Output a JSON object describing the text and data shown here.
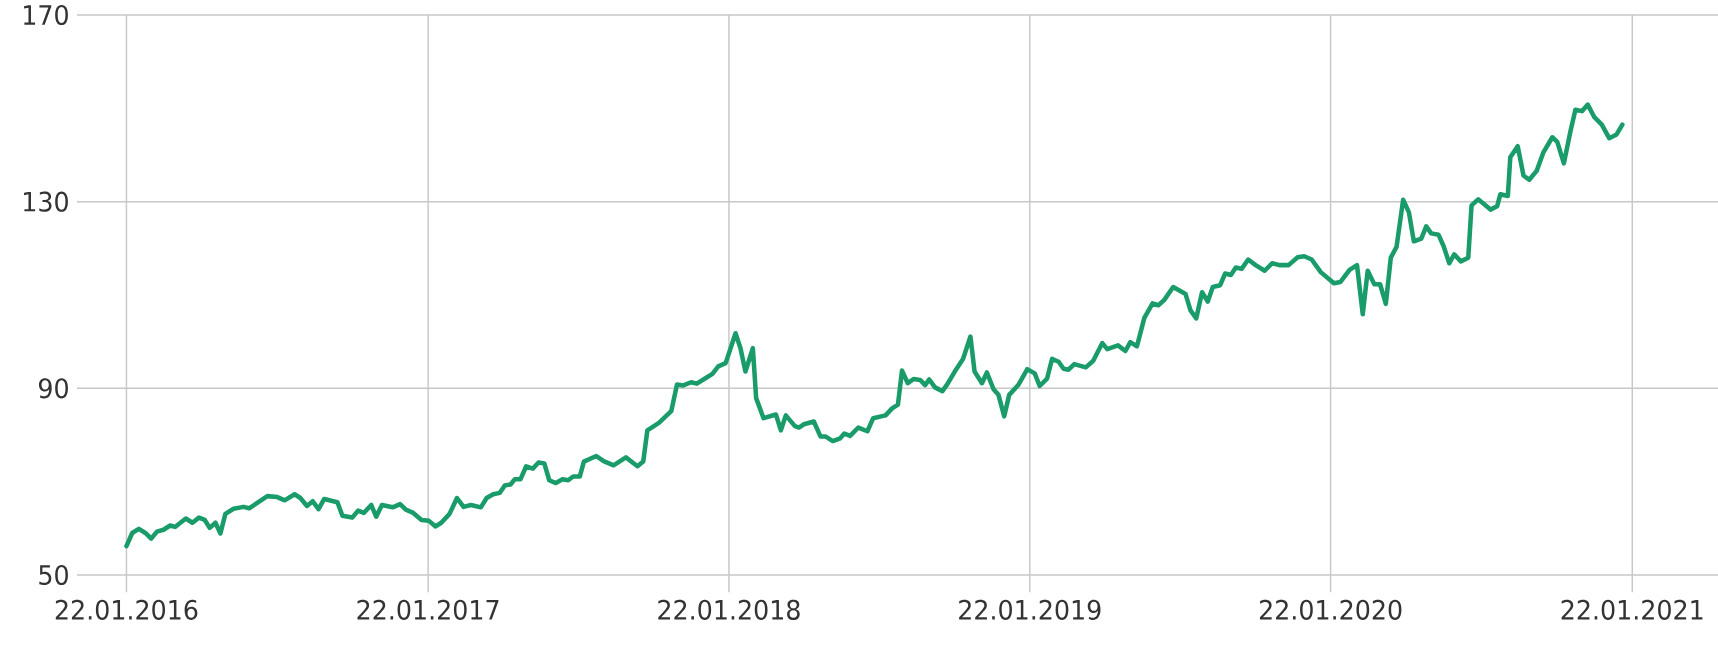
{
  "chart_data": {
    "type": "line",
    "x": [
      "2016-01-22",
      "2016-01-29",
      "2016-02-06",
      "2016-02-14",
      "2016-02-21",
      "2016-02-28",
      "2016-03-07",
      "2016-03-15",
      "2016-03-21",
      "2016-04-03",
      "2016-04-11",
      "2016-04-19",
      "2016-04-26",
      "2016-05-02",
      "2016-05-09",
      "2016-05-15",
      "2016-05-21",
      "2016-05-31",
      "2016-06-12",
      "2016-06-19",
      "2016-07-11",
      "2016-07-23",
      "2016-08-01",
      "2016-08-13",
      "2016-08-20",
      "2016-08-28",
      "2016-09-04",
      "2016-09-11",
      "2016-09-18",
      "2016-10-04",
      "2016-10-10",
      "2016-10-22",
      "2016-10-29",
      "2016-11-05",
      "2016-11-14",
      "2016-11-20",
      "2016-11-27",
      "2016-12-10",
      "2016-12-19",
      "2016-12-26",
      "2017-01-04",
      "2017-01-14",
      "2017-01-23",
      "2017-01-31",
      "2017-02-07",
      "2017-02-17",
      "2017-02-26",
      "2017-03-06",
      "2017-03-15",
      "2017-03-27",
      "2017-04-03",
      "2017-04-11",
      "2017-04-19",
      "2017-04-25",
      "2017-05-02",
      "2017-05-07",
      "2017-05-14",
      "2017-05-21",
      "2017-05-29",
      "2017-06-05",
      "2017-06-12",
      "2017-06-18",
      "2017-06-26",
      "2017-07-04",
      "2017-07-11",
      "2017-07-17",
      "2017-07-25",
      "2017-07-30",
      "2017-08-14",
      "2017-08-23",
      "2017-09-04",
      "2017-09-19",
      "2017-10-03",
      "2017-10-10",
      "2017-10-15",
      "2017-10-29",
      "2017-11-13",
      "2017-11-20",
      "2017-11-27",
      "2017-12-07",
      "2017-12-14",
      "2017-12-24",
      "2018-01-02",
      "2018-01-09",
      "2018-01-18",
      "2018-01-30",
      "2018-02-05",
      "2018-02-11",
      "2018-02-20",
      "2018-02-24",
      "2018-03-05",
      "2018-03-20",
      "2018-03-26",
      "2018-04-01",
      "2018-04-12",
      "2018-04-17",
      "2018-04-23",
      "2018-05-05",
      "2018-05-13",
      "2018-05-19",
      "2018-05-28",
      "2018-06-06",
      "2018-06-11",
      "2018-06-18",
      "2018-06-28",
      "2018-07-09",
      "2018-07-16",
      "2018-07-31",
      "2018-08-08",
      "2018-08-15",
      "2018-08-20",
      "2018-08-27",
      "2018-09-03",
      "2018-09-11",
      "2018-09-17",
      "2018-09-22",
      "2018-09-29",
      "2018-10-08",
      "2018-10-14",
      "2018-10-23",
      "2018-11-02",
      "2018-11-11",
      "2018-11-16",
      "2018-11-25",
      "2018-12-01",
      "2018-12-09",
      "2018-12-15",
      "2018-12-22",
      "2018-12-28",
      "2019-01-08",
      "2019-01-19",
      "2019-01-28",
      "2019-02-03",
      "2019-02-12",
      "2019-02-18",
      "2019-02-26",
      "2019-03-04",
      "2019-03-10",
      "2019-03-17",
      "2019-03-31",
      "2019-04-09",
      "2019-04-20",
      "2019-04-26",
      "2019-05-09",
      "2019-05-18",
      "2019-05-24",
      "2019-06-01",
      "2019-06-10",
      "2019-06-20",
      "2019-06-27",
      "2019-07-04",
      "2019-07-15",
      "2019-07-30",
      "2019-08-05",
      "2019-08-12",
      "2019-08-19",
      "2019-08-26",
      "2019-09-01",
      "2019-09-10",
      "2019-09-16",
      "2019-09-23",
      "2019-09-29",
      "2019-10-06",
      "2019-10-14",
      "2019-10-23",
      "2019-11-03",
      "2019-11-12",
      "2019-11-21",
      "2019-12-02",
      "2019-12-13",
      "2019-12-21",
      "2019-12-30",
      "2020-01-10",
      "2020-01-26",
      "2020-02-03",
      "2020-02-14",
      "2020-02-23",
      "2020-03-01",
      "2020-03-07",
      "2020-03-15",
      "2020-03-22",
      "2020-03-29",
      "2020-04-04",
      "2020-04-11",
      "2020-04-19",
      "2020-04-26",
      "2020-05-02",
      "2020-05-11",
      "2020-05-17",
      "2020-05-23",
      "2020-06-01",
      "2020-06-07",
      "2020-06-14",
      "2020-06-20",
      "2020-06-28",
      "2020-07-07",
      "2020-07-11",
      "2020-07-19",
      "2020-07-26",
      "2020-08-03",
      "2020-08-11",
      "2020-08-15",
      "2020-08-24",
      "2020-08-27",
      "2020-09-05",
      "2020-09-12",
      "2020-09-19",
      "2020-09-28",
      "2020-10-06",
      "2020-10-17",
      "2020-10-23",
      "2020-10-31",
      "2020-11-08",
      "2020-11-14",
      "2020-11-22",
      "2020-11-29",
      "2020-12-07",
      "2020-12-16",
      "2020-12-25",
      "2021-01-03",
      "2021-01-10"
    ],
    "series": [
      {
        "color": "#1a9c6a",
        "values": [
          56.2,
          59.0,
          59.9,
          59.0,
          57.8,
          59.3,
          59.7,
          60.6,
          60.3,
          62.1,
          61.2,
          62.3,
          61.8,
          60.1,
          61.2,
          58.9,
          63.1,
          64.2,
          64.6,
          64.3,
          66.9,
          66.7,
          66.0,
          67.3,
          66.5,
          64.8,
          65.8,
          64.1,
          66.3,
          65.6,
          62.7,
          62.3,
          63.8,
          63.3,
          65.0,
          62.5,
          65.0,
          64.5,
          65.2,
          64.0,
          63.3,
          61.8,
          61.6,
          60.4,
          61.2,
          63.1,
          66.5,
          64.6,
          65.0,
          64.5,
          66.5,
          67.3,
          67.6,
          69.2,
          69.4,
          70.5,
          70.5,
          73.3,
          72.8,
          74.1,
          73.9,
          70.3,
          69.7,
          70.5,
          70.3,
          71.1,
          71.1,
          74.3,
          75.5,
          74.4,
          73.5,
          75.2,
          73.3,
          74.3,
          81.0,
          82.6,
          85.1,
          90.8,
          90.6,
          91.3,
          91.0,
          92.1,
          93.1,
          94.7,
          95.4,
          101.8,
          98.6,
          93.6,
          98.6,
          87.9,
          83.6,
          84.4,
          81.0,
          84.2,
          81.9,
          81.6,
          82.3,
          82.9,
          79.7,
          79.7,
          78.7,
          79.3,
          80.3,
          79.8,
          81.6,
          80.8,
          83.6,
          84.2,
          85.7,
          86.5,
          93.8,
          91.1,
          92.0,
          91.8,
          90.7,
          91.9,
          90.2,
          89.4,
          90.9,
          93.6,
          96.3,
          101.1,
          93.6,
          91.1,
          93.4,
          89.8,
          88.6,
          84.0,
          88.6,
          90.7,
          94.1,
          93.2,
          90.5,
          92.1,
          96.3,
          95.7,
          94.2,
          94.0,
          95.2,
          94.5,
          95.9,
          99.7,
          98.4,
          99.2,
          98.0,
          99.9,
          99.0,
          105.1,
          108.2,
          107.8,
          108.9,
          111.7,
          110.2,
          106.7,
          105.0,
          110.6,
          108.6,
          111.7,
          112.1,
          114.6,
          114.3,
          115.9,
          115.6,
          117.6,
          116.4,
          115.2,
          116.8,
          116.4,
          116.4,
          118.1,
          118.3,
          117.6,
          114.9,
          112.5,
          112.8,
          115.4,
          116.4,
          105.9,
          115.2,
          112.3,
          112.3,
          108.1,
          118.0,
          120.3,
          130.4,
          127.7,
          121.5,
          122.1,
          124.7,
          123.2,
          122.9,
          120.5,
          116.8,
          118.7,
          117.2,
          118.0,
          129.2,
          130.5,
          129.5,
          128.3,
          129.0,
          131.6,
          131.2,
          139.5,
          141.9,
          135.6,
          134.7,
          136.6,
          140.5,
          143.8,
          142.8,
          138.2,
          145.1,
          149.7,
          149.4,
          150.8,
          148.1,
          146.5,
          143.6,
          144.4,
          146.5
        ]
      }
    ],
    "xlim": [
      "2015-11-23",
      "2021-05-06"
    ],
    "xticks": [
      {
        "value": "2016-01-22",
        "label": "22.01.2016"
      },
      {
        "value": "2017-01-22",
        "label": "22.01.2017"
      },
      {
        "value": "2018-01-22",
        "label": "22.01.2018"
      },
      {
        "value": "2019-01-22",
        "label": "22.01.2019"
      },
      {
        "value": "2020-01-22",
        "label": "22.01.2020"
      },
      {
        "value": "2021-01-22",
        "label": "22.01.2021"
      }
    ],
    "ylim": [
      50,
      170
    ],
    "yticks": [
      50,
      90,
      130,
      170
    ],
    "grid": true
  }
}
